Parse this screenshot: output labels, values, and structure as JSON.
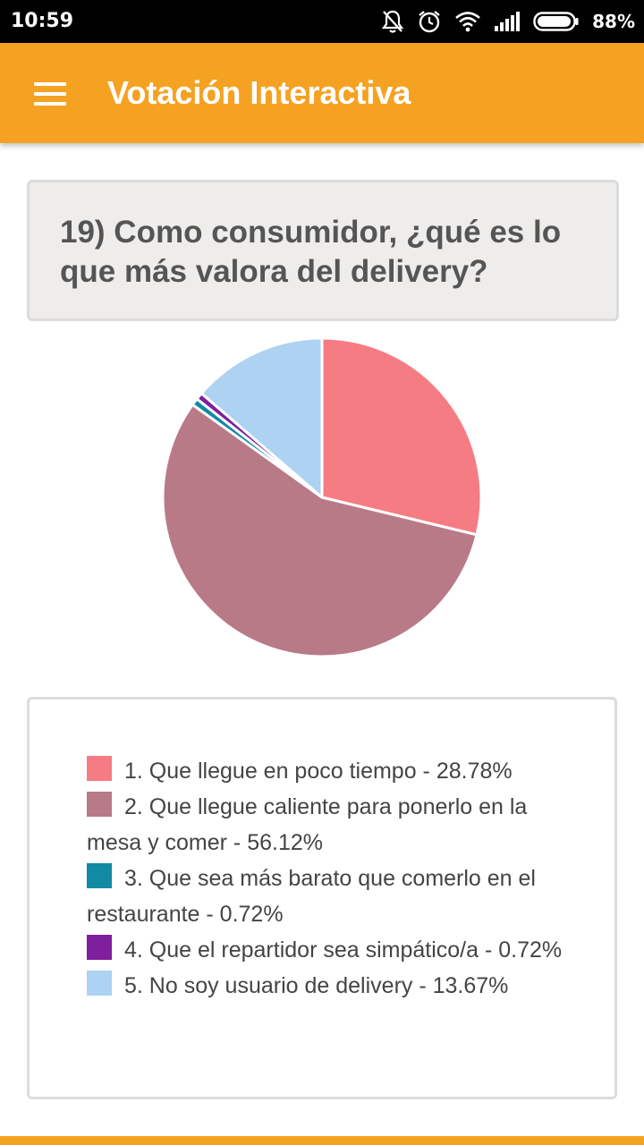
{
  "status_bar": {
    "time": "10:59",
    "battery": "88%",
    "icons": [
      "bell-off-icon",
      "alarm-icon",
      "wifi-icon",
      "signal-icon",
      "battery-icon"
    ]
  },
  "app_bar": {
    "title": "Votación Interactiva",
    "menu_icon": "menu-icon",
    "color": "#f5a223"
  },
  "question": {
    "text": "19) Como consumidor, ¿qué es lo que más valora del delivery?"
  },
  "chart_data": {
    "type": "pie",
    "slices": [
      {
        "label": "1. Que llegue en poco tiempo - 28.78%",
        "value": 28.78,
        "color": "#f67c83"
      },
      {
        "label": "2. Que llegue caliente para ponerlo en la mesa y comer - 56.12%",
        "value": 56.12,
        "color": "#b97a88"
      },
      {
        "label": "3. Que sea más barato que comerlo en el restaurante - 0.72%",
        "value": 0.72,
        "color": "#128aa3"
      },
      {
        "label": "4. Que el repartidor sea simpático/a - 0.72%",
        "value": 0.72,
        "color": "#7f1f9e"
      },
      {
        "label": "5. No soy usuario de delivery - 13.67%",
        "value": 13.67,
        "color": "#add2f2"
      }
    ],
    "legend_placement": "bottom"
  }
}
